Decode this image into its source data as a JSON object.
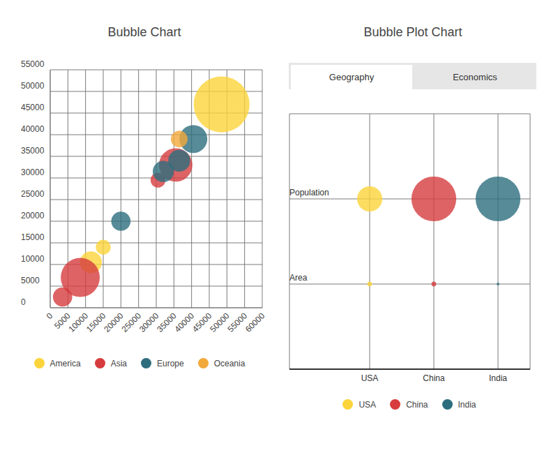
{
  "chart_data": [
    {
      "type": "bubble",
      "title": "Bubble Chart",
      "xlim": [
        0,
        60000
      ],
      "xticks": [
        0,
        5000,
        10000,
        15000,
        20000,
        25000,
        30000,
        35000,
        40000,
        45000,
        50000,
        55000,
        60000
      ],
      "ylim": [
        0,
        55000
      ],
      "yticks": [
        0,
        5000,
        10000,
        15000,
        20000,
        25000,
        30000,
        35000,
        40000,
        45000,
        50000,
        55000
      ],
      "grid": true,
      "legend": "bottom",
      "series": [
        {
          "name": "America",
          "color": "#fbd43a",
          "x": [
            48500,
            15000,
            11500
          ],
          "y": [
            47000,
            14000,
            10500
          ],
          "size": [
            84,
            6,
            13
          ]
        },
        {
          "name": "Asia",
          "color": "#d63c3e",
          "x": [
            8500,
            3500,
            30500,
            35500
          ],
          "y": [
            7000,
            2500,
            29500,
            33000
          ],
          "size": [
            41,
            10,
            6,
            30
          ]
        },
        {
          "name": "Europe",
          "color": "#2d6e7e",
          "x": [
            20000,
            32000,
            36500,
            40500
          ],
          "y": [
            20000,
            31500,
            34000,
            39000
          ],
          "size": [
            10,
            12,
            13,
            21
          ]
        },
        {
          "name": "Oceania",
          "color": "#f2a93b",
          "x": [
            36500
          ],
          "y": [
            39000
          ],
          "size": [
            7.5
          ]
        }
      ]
    },
    {
      "type": "bubble",
      "title": "Bubble Plot Chart",
      "tabs": [
        {
          "label": "Geography",
          "active": true
        },
        {
          "label": "Economics",
          "active": false
        }
      ],
      "categories": [
        "USA",
        "China",
        "India"
      ],
      "rows": [
        "Population",
        "Area"
      ],
      "grid": true,
      "legend": "bottom",
      "series": [
        {
          "name": "USA",
          "color": "#fbd43a",
          "sizes": [
            17,
            0.6
          ]
        },
        {
          "name": "China",
          "color": "#d63c3e",
          "sizes": [
            54,
            0.6
          ]
        },
        {
          "name": "India",
          "color": "#2d6e7e",
          "sizes": [
            54,
            0.2
          ]
        }
      ]
    }
  ]
}
